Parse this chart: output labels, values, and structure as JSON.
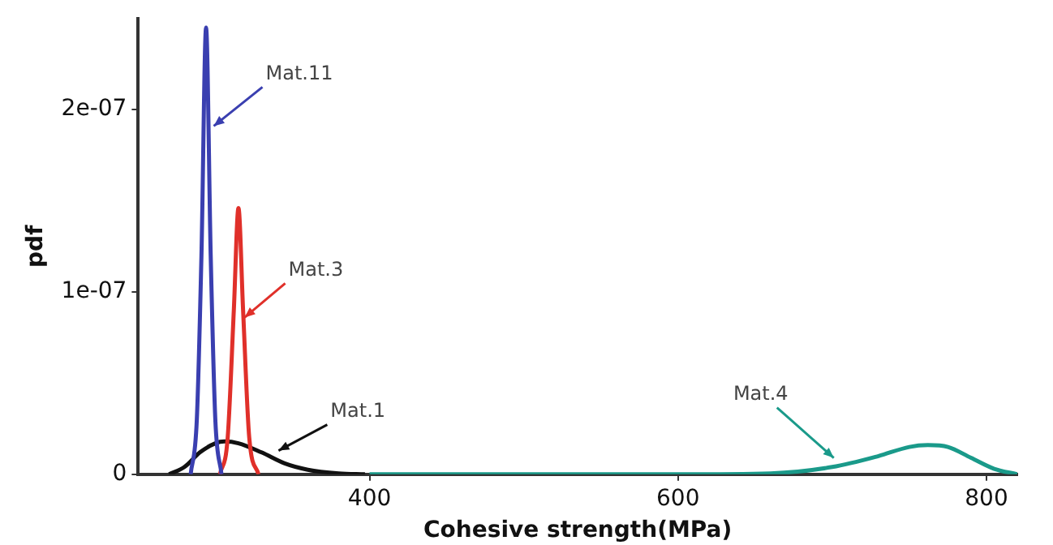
{
  "chart_data": {
    "type": "line",
    "xlabel": "Cohesive strength(MPa)",
    "ylabel": "pdf",
    "xlim": [
      250,
      820
    ],
    "xticks": [
      400,
      600,
      800
    ],
    "ylim": [
      0,
      2.5e-07
    ],
    "yticks": [
      0,
      {
        "value": 1e-07,
        "label": "1e-07"
      },
      {
        "value": 2e-07,
        "label": "2e-07"
      }
    ],
    "grid": false,
    "legend": false,
    "marker": "none",
    "line_style": "solid",
    "series": [
      {
        "color": "#3a3fb0",
        "x": [
          284,
          288,
          291,
          294,
          297,
          300,
          304
        ],
        "values": [
          0,
          3e-08,
          1.2e-07,
          2.45e-07,
          1.2e-07,
          3e-08,
          0
        ]
      },
      {
        "color": "#e0302a",
        "x": [
          303,
          308,
          312,
          315,
          318,
          322,
          328
        ],
        "values": [
          0,
          2e-08,
          9e-08,
          1.46e-07,
          9e-08,
          2e-08,
          0
        ]
      },
      {
        "color": "#111111",
        "x": [
          270,
          280,
          290,
          300,
          306,
          315,
          330,
          345,
          360,
          380,
          397
        ],
        "values": [
          0,
          4e-09,
          1.2e-08,
          1.7e-08,
          1.8e-08,
          1.7e-08,
          1.2e-08,
          6e-09,
          2.5e-09,
          5e-10,
          0
        ]
      },
      {
        "color": "#1a9a8a",
        "x": [
          400,
          600,
          660,
          700,
          730,
          750,
          762,
          775,
          790,
          805,
          820
        ],
        "values": [
          0,
          0,
          5e-10,
          4e-09,
          1e-08,
          1.5e-08,
          1.6e-08,
          1.5e-08,
          9e-09,
          3e-09,
          0
        ]
      }
    ],
    "annotations": [
      {
        "text": "Mat.11",
        "x": 299,
        "y": 1.91e-07
      },
      {
        "text": "Mat.3",
        "x": 319,
        "y": 8.6e-08
      },
      {
        "text": "Mat.1",
        "x": 341,
        "y": 1.3e-08
      },
      {
        "text": "Mat.4",
        "x": 701,
        "y": 9e-09
      }
    ]
  }
}
